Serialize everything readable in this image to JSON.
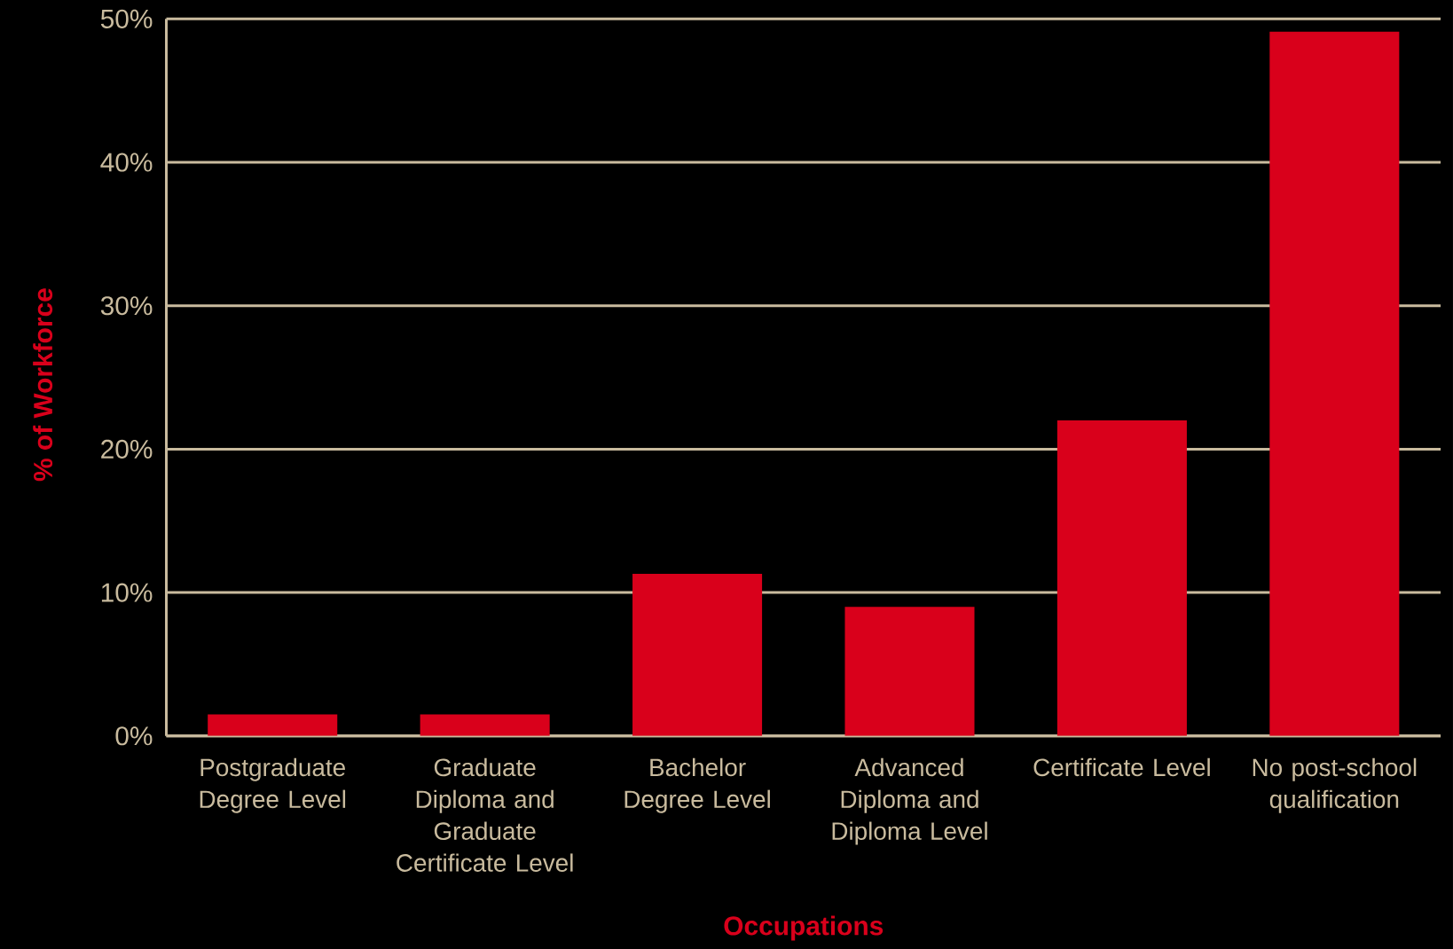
{
  "chart_data": {
    "type": "bar",
    "xlabel": "Occupations",
    "ylabel": "% of Workforce",
    "categories": [
      "Postgraduate Degree Level",
      "Graduate Diploma and Graduate Certificate Level",
      "Bachelor Degree Level",
      "Advanced Diploma and Diploma Level",
      "Certificate Level",
      "No post-school qualification"
    ],
    "values": [
      1.5,
      1.5,
      11.3,
      9.0,
      22.0,
      49.1
    ],
    "color": "#d9001b",
    "ylim": [
      0,
      50
    ],
    "yticks": [
      {
        "value": 0,
        "label": "0%"
      },
      {
        "value": 10,
        "label": "10%"
      },
      {
        "value": 20,
        "label": "20%"
      },
      {
        "value": 30,
        "label": "30%"
      },
      {
        "value": 40,
        "label": "40%"
      },
      {
        "value": 50,
        "label": "50%"
      }
    ],
    "grid": "y"
  }
}
